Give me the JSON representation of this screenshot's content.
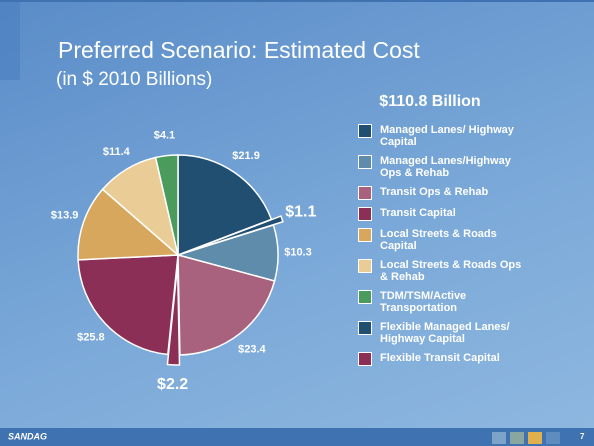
{
  "chart_data": {
    "type": "pie",
    "title": "Preferred Scenario: Estimated Cost",
    "subtitle": "(in $ 2010 Billions)",
    "annotation": "$110.8 Billion",
    "series": [
      {
        "name": "Managed Lanes/ Highway Capital",
        "color": "#204f72",
        "value": 21.9,
        "value_label": "$21.9"
      },
      {
        "name": "Managed Lanes/Highway Ops & Rehab",
        "color": "#5f8cab",
        "value": 10.3,
        "value_label": "$10.3"
      },
      {
        "name": "Transit Ops & Rehab",
        "color": "#a9627d",
        "value": 23.4,
        "value_label": "$23.4"
      },
      {
        "name": "Transit Capital",
        "color": "#8b2f57",
        "value": 25.8,
        "value_label": "$25.8"
      },
      {
        "name": "Local Streets & Roads Capital",
        "color": "#d6a75c",
        "value": 13.9,
        "value_label": "$13.9"
      },
      {
        "name": "Local Streets & Roads Ops & Rehab",
        "color": "#eacd96",
        "value": 11.4,
        "value_label": "$11.4"
      },
      {
        "name": "TDM/TSM/Active Transportation",
        "color": "#4b9b5c",
        "value": 4.1,
        "value_label": "$4.1"
      },
      {
        "name": "Flexible Managed Lanes/ Highway Capital",
        "color": "#204f72",
        "value": 1.1,
        "value_label": "$1.1"
      },
      {
        "name": "Flexible Transit Capital",
        "color": "#8b2f57",
        "value": 2.2,
        "value_label": "$2.2"
      }
    ]
  },
  "footer": {
    "logo": "SANDAG",
    "page": "7"
  }
}
